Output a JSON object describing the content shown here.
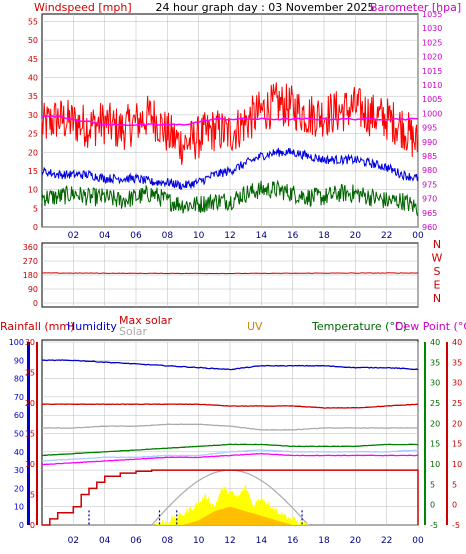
{
  "chart_data": [
    {
      "type": "line",
      "title": "24 hour graph day : 03 November 2025",
      "y_left_label": "Windspeed [mph]",
      "y_right_label": "Barometer [hpa]",
      "x_ticks": [
        "02",
        "04",
        "06",
        "08",
        "10",
        "12",
        "14",
        "16",
        "18",
        "20",
        "22",
        "00"
      ],
      "y_left_ticks": [
        "0",
        "5",
        "10",
        "15",
        "20",
        "25",
        "30",
        "35",
        "40",
        "45",
        "50",
        "55"
      ],
      "y_right_ticks": [
        "960",
        "965",
        "970",
        "975",
        "980",
        "985",
        "990",
        "995",
        "1000",
        "1005",
        "1010",
        "1015",
        "1020",
        "1025",
        "1030",
        "1035"
      ],
      "ylim_left": [
        0,
        57
      ],
      "ylim_right": [
        960,
        1035
      ],
      "x_hours": [
        0,
        1,
        2,
        3,
        4,
        5,
        6,
        7,
        8,
        9,
        10,
        11,
        12,
        13,
        14,
        15,
        16,
        17,
        18,
        19,
        20,
        21,
        22,
        23,
        24
      ],
      "series": [
        {
          "key": "gust",
          "axis": "left",
          "color": "#ff0000",
          "values": [
            27,
            29,
            28,
            27,
            28,
            26,
            28,
            30,
            25,
            22,
            24,
            26,
            25,
            28,
            31,
            33,
            32,
            30,
            30,
            31,
            32,
            30,
            29,
            27,
            22
          ]
        },
        {
          "key": "avg",
          "axis": "left",
          "color": "#006400",
          "values": [
            8,
            8,
            9,
            8,
            8,
            7,
            8,
            9,
            7,
            6,
            6,
            7,
            7,
            9,
            10,
            10,
            9,
            8,
            8,
            9,
            9,
            8,
            7,
            7,
            5
          ]
        },
        {
          "key": "barometer",
          "axis": "right",
          "color": "#ff00ff",
          "values": [
            999,
            999,
            998,
            997,
            996,
            996,
            996,
            996,
            996,
            996,
            997,
            998,
            998,
            998,
            998,
            998,
            998,
            998,
            998,
            998,
            998,
            998,
            998,
            998,
            998
          ]
        },
        {
          "key": "windspeed2",
          "axis": "left",
          "color": "#0000dd",
          "values": [
            15,
            14,
            14,
            14,
            13,
            13,
            13,
            12,
            12,
            11,
            12,
            14,
            15,
            17,
            19,
            20,
            20,
            19,
            18,
            18,
            18,
            17,
            16,
            14,
            13
          ]
        }
      ]
    },
    {
      "type": "line",
      "y_left_ticks": [
        "0",
        "90",
        "180",
        "270",
        "360"
      ],
      "y_right_labels": [
        "N",
        "W",
        "S",
        "E",
        "N"
      ],
      "ylim": [
        0,
        360
      ],
      "x_hours": [
        0,
        6,
        12,
        18,
        24
      ],
      "series": [
        {
          "key": "direction",
          "color": "#cc0000",
          "values": [
            193,
            191,
            190,
            192,
            193
          ]
        }
      ]
    },
    {
      "type": "line",
      "labels": {
        "rain": "Rainfall (mm)",
        "humidity": "Humidity",
        "max_solar": "Max solar",
        "solar": "Solar",
        "uv": "UV",
        "temperature": "Temperature (°C)",
        "dewpoint": "Dew Point (°C)"
      },
      "humidity_ticks": [
        "0",
        "10",
        "20",
        "30",
        "40",
        "50",
        "60",
        "70",
        "80",
        "90",
        "100"
      ],
      "rain_ticks": [
        "0",
        "5",
        "10",
        "15",
        "20",
        "25",
        "30"
      ],
      "temp_ticks": [
        "-5",
        "0",
        "5",
        "10",
        "15",
        "20",
        "25",
        "30",
        "35",
        "40"
      ],
      "dew_ticks": [
        "-5",
        "0",
        "5",
        "10",
        "15",
        "20",
        "25",
        "30",
        "35",
        "40"
      ],
      "ylim_humidity": [
        0,
        100
      ],
      "ylim_rain": [
        0,
        30
      ],
      "ylim_temp": [
        -5,
        40
      ],
      "x_ticks": [
        "02",
        "04",
        "06",
        "08",
        "10",
        "12",
        "14",
        "16",
        "18",
        "20",
        "22",
        "00"
      ],
      "x_hours": [
        0,
        2,
        4,
        6,
        8,
        10,
        12,
        14,
        16,
        18,
        20,
        22,
        24
      ],
      "series": [
        {
          "key": "humidity",
          "axis": "humidity",
          "color": "#0000cc",
          "values": [
            90,
            90,
            89,
            88,
            87,
            86,
            85,
            87,
            87,
            87,
            86,
            86,
            85
          ]
        },
        {
          "key": "temp_red",
          "axis": "humidity",
          "color": "#cc0000",
          "values": [
            66,
            66,
            66,
            66,
            66,
            66,
            65,
            65,
            65,
            64,
            64,
            65,
            66
          ]
        },
        {
          "key": "solar_gray",
          "axis": "humidity",
          "color": "#aaaaaa",
          "values": [
            53,
            53,
            54,
            54,
            55,
            55,
            54,
            52,
            52,
            53,
            53,
            53,
            53
          ]
        },
        {
          "key": "temperature",
          "axis": "humidity",
          "color": "#008000",
          "values": [
            38,
            39,
            40,
            41,
            42,
            43,
            44,
            44,
            43,
            43,
            43,
            44,
            44
          ]
        },
        {
          "key": "dewpoint",
          "axis": "humidity",
          "color": "#ff00ff",
          "values": [
            33,
            34,
            35,
            36,
            37,
            37,
            38,
            39,
            38,
            38,
            38,
            38,
            38
          ]
        },
        {
          "key": "light_blue",
          "axis": "humidity",
          "color": "#aaccff",
          "values": [
            35,
            36,
            37,
            37,
            38,
            38,
            40,
            41,
            40,
            40,
            40,
            40,
            41
          ]
        }
      ],
      "rain_cumulative": {
        "color": "#cc0000",
        "hours": [
          0,
          0.5,
          1,
          1.5,
          2,
          2.5,
          3,
          3.5,
          4,
          5,
          6,
          7,
          8,
          10,
          12,
          14,
          16,
          18,
          20,
          22,
          23.9,
          24
        ],
        "values": [
          0,
          1,
          2,
          2,
          3,
          5,
          6,
          7,
          8,
          8.5,
          8.8,
          9,
          9,
          9,
          9,
          9,
          9,
          9,
          9,
          9,
          9,
          0
        ]
      },
      "max_solar_curve": {
        "color": "#aaaaaa",
        "start_hour": 7,
        "end_hour": 17,
        "peak_percent": 30
      },
      "solar_fill": {
        "color": "#ffff00",
        "hours": [
          7,
          8,
          9,
          10,
          10.5,
          11,
          11.5,
          12,
          12.5,
          13,
          13.5,
          14,
          15,
          16,
          17
        ],
        "values": [
          0,
          2,
          6,
          12,
          16,
          10,
          20,
          18,
          15,
          21,
          11,
          15,
          8,
          3,
          0
        ]
      },
      "uv_fill": {
        "color": "#ff8800",
        "hours": [
          9,
          10,
          11,
          12,
          13,
          14,
          15,
          16
        ],
        "values": [
          0,
          1,
          3,
          4,
          3,
          2,
          1,
          0
        ]
      },
      "rain_events_hours": [
        3,
        7.5,
        8.6,
        16.6
      ]
    }
  ]
}
